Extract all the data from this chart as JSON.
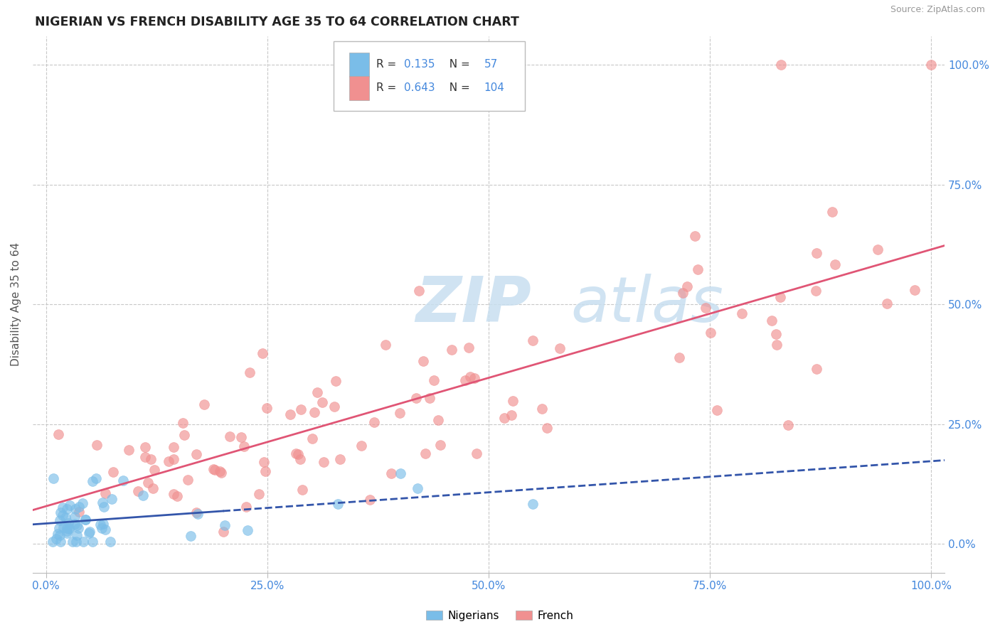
{
  "title": "NIGERIAN VS FRENCH DISABILITY AGE 35 TO 64 CORRELATION CHART",
  "source": "Source: ZipAtlas.com",
  "ylabel": "Disability Age 35 to 64",
  "watermark": "ZIPatlas",
  "nigerian_color": "#7ABDE8",
  "french_color": "#F09090",
  "nigerian_line_color": "#3355AA",
  "french_line_color": "#E05575",
  "bg_color": "#FFFFFF",
  "grid_color": "#C8C8C8",
  "axis_label_color": "#4488DD",
  "title_color": "#222222",
  "xtick_labels": [
    "0.0%",
    "25.0%",
    "50.0%",
    "75.0%",
    "100.0%"
  ],
  "ytick_labels": [
    "0.0%",
    "25.0%",
    "50.0%",
    "75.0%",
    "100.0%"
  ],
  "nigerian_seed": 42,
  "french_seed": 99,
  "legend_nig_r": "0.135",
  "legend_nig_n": "57",
  "legend_fr_r": "0.643",
  "legend_fr_n": "104"
}
